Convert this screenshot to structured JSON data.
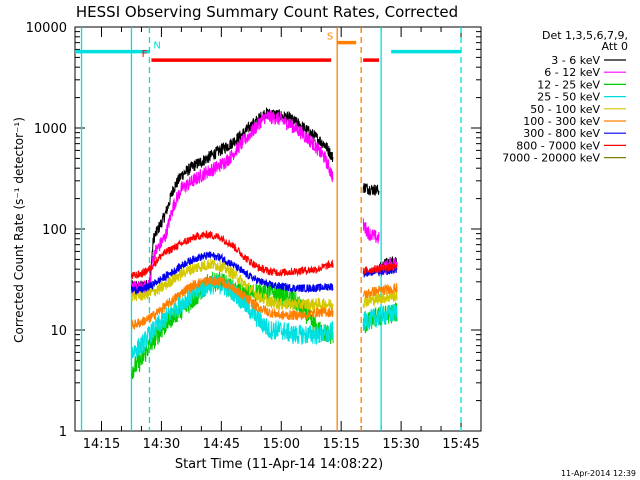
{
  "chart_data": {
    "type": "line",
    "title": "HESSI Observing Summary Count Rates, Corrected",
    "xlabel": "Start Time (11-Apr-14 14:08:22)",
    "ylabel": "Corrected Count Rate (s⁻¹ detector⁻¹)",
    "xlim": [
      "14:08:22",
      "15:50:00"
    ],
    "ylim": [
      1,
      10000
    ],
    "yscale": "log",
    "grid": false,
    "legend_placement": "right",
    "legend_header": [
      "Det 1,3,5,6,7,9,",
      "Att 0"
    ],
    "x_ticks": [
      "14:15",
      "14:30",
      "14:45",
      "15:00",
      "15:15",
      "15:30",
      "15:45"
    ],
    "y_ticks": [
      "1",
      "10",
      "100",
      "1000",
      "10000"
    ],
    "timestamp": "11-Apr-2014 12:39",
    "flags": [
      {
        "label": "N",
        "color": "#00e0e0",
        "value": 5700,
        "segments": [
          [
            "14:08:22",
            "14:27:00"
          ],
          [
            "15:27:30",
            "15:45:00"
          ]
        ]
      },
      {
        "label": "F",
        "color": "#ff0000",
        "value": 4700,
        "segments": [
          [
            "14:27:30",
            "15:12:30"
          ],
          [
            "15:20:30",
            "15:24:30"
          ]
        ]
      },
      {
        "label": "S",
        "color": "#ff8000",
        "value": 7000,
        "segments": [
          [
            "15:14:00",
            "15:18:45"
          ]
        ]
      }
    ],
    "markers": [
      {
        "time": "14:10:00",
        "color": "#00e0e0",
        "style": "solid"
      },
      {
        "time": "14:22:30",
        "color": "#00e0e0",
        "style": "solid"
      },
      {
        "time": "14:27:00",
        "color": "#00e0e0",
        "style": "dashed"
      },
      {
        "time": "15:14:00",
        "color": "#ff8000",
        "style": "solid"
      },
      {
        "time": "15:20:00",
        "color": "#ff8000",
        "style": "dashed"
      },
      {
        "time": "15:25:00",
        "color": "#00e0e0",
        "style": "solid"
      },
      {
        "time": "15:45:00",
        "color": "#00e0e0",
        "style": "dashed"
      }
    ],
    "series": [
      {
        "name": "3 - 6 keV",
        "color": "#000000",
        "noise": 0.06,
        "segments": [
          {
            "x": [
              "14:22:30",
              "14:25:00",
              "14:27:00",
              "14:28:00",
              "14:31:00",
              "14:33:00",
              "14:35:00",
              "14:38:00",
              "14:41:00",
              "14:44:00",
              "14:47:00",
              "14:50:00",
              "14:53:00",
              "14:56:00",
              "14:59:00",
              "15:02:00",
              "15:05:00",
              "15:08:00",
              "15:11:00",
              "15:13:00"
            ],
            "y": [
              27,
              27,
              28,
              80,
              140,
              250,
              340,
              420,
              490,
              580,
              680,
              850,
              1100,
              1400,
              1350,
              1250,
              1050,
              850,
              680,
              500
            ]
          },
          {
            "x": [
              "15:20:30",
              "15:22:00",
              "15:24:30"
            ],
            "y": [
              260,
              250,
              240
            ]
          },
          {
            "x": [
              "15:24:30",
              "15:26:00",
              "15:28:00",
              "15:29:00"
            ],
            "y": [
              40,
              45,
              48,
              50
            ]
          }
        ]
      },
      {
        "name": "6 - 12 keV",
        "color": "#ff00ff",
        "noise": 0.07,
        "segments": [
          {
            "x": [
              "14:22:30",
              "14:25:00",
              "14:27:00",
              "14:28:00",
              "14:31:00",
              "14:33:00",
              "14:35:00",
              "14:38:00",
              "14:41:00",
              "14:44:00",
              "14:47:00",
              "14:50:00",
              "14:53:00",
              "14:56:00",
              "14:59:00",
              "15:02:00",
              "15:05:00",
              "15:08:00",
              "15:11:00",
              "15:13:00"
            ],
            "y": [
              26,
              26,
              27,
              55,
              85,
              170,
              250,
              300,
              360,
              410,
              500,
              700,
              950,
              1300,
              1250,
              1100,
              900,
              700,
              500,
              320
            ]
          },
          {
            "x": [
              "15:20:30",
              "15:22:00",
              "15:24:30"
            ],
            "y": [
              110,
              90,
              80
            ]
          },
          {
            "x": [
              "15:24:30",
              "15:26:00",
              "15:28:00",
              "15:29:00"
            ],
            "y": [
              38,
              42,
              45,
              47
            ]
          }
        ]
      },
      {
        "name": "12 - 25 keV",
        "color": "#00cc00",
        "noise": 0.1,
        "segments": [
          {
            "x": [
              "14:22:30",
              "14:25:00",
              "14:27:00",
              "14:30:00",
              "14:33:00",
              "14:36:00",
              "14:39:00",
              "14:42:00",
              "14:45:00",
              "14:48:00",
              "14:51:00",
              "14:54:00",
              "14:57:00",
              "15:00:00",
              "15:03:00",
              "15:06:00",
              "15:09:00",
              "15:12:00",
              "15:13:00"
            ],
            "y": [
              4,
              5,
              7,
              10,
              14,
              17,
              22,
              30,
              30,
              25,
              22,
              24,
              24,
              22,
              20,
              15,
              10,
              9,
              9
            ]
          },
          {
            "x": [
              "15:20:30",
              "15:23:00",
              "15:26:00",
              "15:29:00"
            ],
            "y": [
              11,
              13,
              14,
              15
            ]
          }
        ]
      },
      {
        "name": "25 - 50 keV",
        "color": "#00e0e0",
        "noise": 0.1,
        "segments": [
          {
            "x": [
              "14:22:30",
              "14:25:00",
              "14:27:00",
              "14:30:00",
              "14:33:00",
              "14:36:00",
              "14:39:00",
              "14:42:00",
              "14:45:00",
              "14:48:00",
              "14:51:00",
              "14:54:00",
              "14:57:00",
              "15:00:00",
              "15:03:00",
              "15:06:00",
              "15:09:00",
              "15:12:00",
              "15:13:00"
            ],
            "y": [
              6,
              7,
              9,
              12,
              16,
              20,
              24,
              28,
              28,
              24,
              18,
              13,
              10,
              10,
              9,
              9,
              9,
              9,
              10
            ]
          },
          {
            "x": [
              "15:20:30",
              "15:23:00",
              "15:26:00",
              "15:29:00"
            ],
            "y": [
              12,
              13,
              14,
              15
            ]
          }
        ]
      },
      {
        "name": "50 - 100 keV",
        "color": "#d4c800",
        "noise": 0.06,
        "segments": [
          {
            "x": [
              "14:22:30",
              "14:25:00",
              "14:27:00",
              "14:30:00",
              "14:33:00",
              "14:36:00",
              "14:39:00",
              "14:42:00",
              "14:45:00",
              "14:48:00",
              "14:51:00",
              "14:54:00",
              "14:57:00",
              "15:00:00",
              "15:03:00",
              "15:06:00",
              "15:09:00",
              "15:12:00",
              "15:13:00"
            ],
            "y": [
              22,
              22,
              23,
              26,
              32,
              38,
              42,
              45,
              43,
              36,
              28,
              22,
              19,
              18,
              18,
              18,
              18,
              18,
              18
            ]
          },
          {
            "x": [
              "15:20:30",
              "15:23:00",
              "15:26:00",
              "15:29:00"
            ],
            "y": [
              19,
              20,
              21,
              22
            ]
          }
        ]
      },
      {
        "name": "100 - 300 keV",
        "color": "#ff8000",
        "noise": 0.05,
        "segments": [
          {
            "x": [
              "14:22:30",
              "14:25:00",
              "14:27:00",
              "14:30:00",
              "14:33:00",
              "14:36:00",
              "14:39:00",
              "14:42:00",
              "14:45:00",
              "14:48:00",
              "14:51:00",
              "14:54:00",
              "14:57:00",
              "15:00:00",
              "15:03:00",
              "15:06:00",
              "15:09:00",
              "15:12:00",
              "15:13:00"
            ],
            "y": [
              11,
              12,
              13,
              16,
              20,
              25,
              29,
              31,
              30,
              26,
              21,
              17,
              15,
              14,
              14,
              14,
              15,
              15,
              15
            ]
          },
          {
            "x": [
              "15:20:30",
              "15:23:00",
              "15:26:00",
              "15:29:00"
            ],
            "y": [
              22,
              24,
              25,
              26
            ]
          }
        ]
      },
      {
        "name": "300 - 800 keV",
        "color": "#0000ee",
        "noise": 0.04,
        "segments": [
          {
            "x": [
              "14:22:30",
              "14:25:00",
              "14:27:00",
              "14:30:00",
              "14:33:00",
              "14:36:00",
              "14:39:00",
              "14:42:00",
              "14:45:00",
              "14:48:00",
              "14:51:00",
              "14:54:00",
              "14:57:00",
              "15:00:00",
              "15:03:00",
              "15:06:00",
              "15:09:00",
              "15:12:00",
              "15:13:00"
            ],
            "y": [
              25,
              25,
              27,
              32,
              38,
              46,
              52,
              55,
              52,
              44,
              36,
              31,
              28,
              27,
              26,
              26,
              26,
              27,
              27
            ]
          },
          {
            "x": [
              "15:20:30",
              "15:23:00",
              "15:26:00",
              "15:29:00"
            ],
            "y": [
              36,
              38,
              38,
              40
            ]
          }
        ]
      },
      {
        "name": "800 - 7000 keV",
        "color": "#ff0000",
        "noise": 0.04,
        "segments": [
          {
            "x": [
              "14:22:30",
              "14:25:00",
              "14:27:00",
              "14:30:00",
              "14:33:00",
              "14:36:00",
              "14:39:00",
              "14:42:00",
              "14:45:00",
              "14:48:00",
              "14:51:00",
              "14:54:00",
              "14:57:00",
              "15:00:00",
              "15:03:00",
              "15:06:00",
              "15:09:00",
              "15:12:00",
              "15:13:00"
            ],
            "y": [
              34,
              36,
              40,
              55,
              65,
              75,
              85,
              88,
              82,
              68,
              52,
              42,
              38,
              37,
              38,
              39,
              40,
              44,
              45
            ]
          },
          {
            "x": [
              "15:20:30",
              "15:23:00",
              "15:26:00",
              "15:29:00"
            ],
            "y": [
              38,
              40,
              41,
              42
            ]
          }
        ]
      },
      {
        "name": "7000 - 20000 keV",
        "color": "#808000",
        "noise": 0.0,
        "segments": []
      }
    ]
  }
}
